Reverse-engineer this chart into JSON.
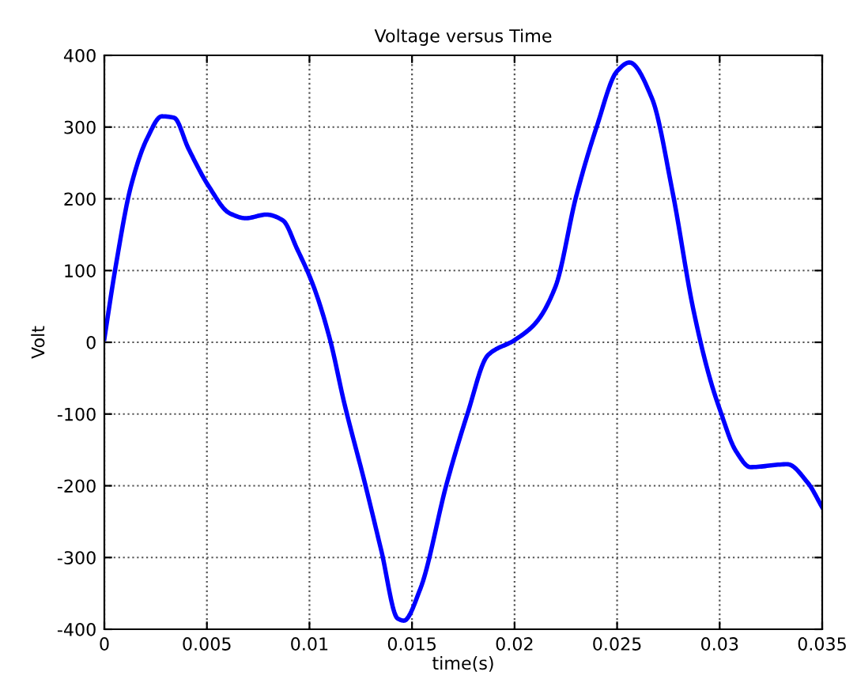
{
  "chart_data": {
    "type": "line",
    "title": "Voltage versus Time",
    "xlabel": "time(s)",
    "ylabel": "Volt",
    "x": [
      0,
      0.00056,
      0.0013,
      0.0021,
      0.0028,
      0.0034,
      0.0041,
      0.0051,
      0.0061,
      0.0069,
      0.0079,
      0.0087,
      0.0094,
      0.0102,
      0.011,
      0.0117,
      0.0127,
      0.0135,
      0.0143,
      0.0146,
      0.0154,
      0.0167,
      0.0177,
      0.0187,
      0.02,
      0.021,
      0.022,
      0.023,
      0.024,
      0.025,
      0.0256,
      0.0267,
      0.0277,
      0.0287,
      0.0295,
      0.03,
      0.0308,
      0.0315,
      0.0333,
      0.0343,
      0.035
    ],
    "series": [
      {
        "color": "#0000ff",
        "values": [
          5,
          107,
          218,
          285,
          315,
          313,
          270,
          217,
          180,
          173,
          178,
          170,
          130,
          78,
          4,
          -85,
          -196,
          -290,
          -385,
          -388,
          -344,
          -196,
          -100,
          -18,
          3,
          26,
          78,
          203,
          300,
          378,
          390,
          340,
          210,
          48,
          -48,
          -93,
          -152,
          -174,
          -170,
          -196,
          -230
        ]
      }
    ],
    "xlim": [
      0,
      0.035
    ],
    "xticks": [
      0,
      0.005,
      0.01,
      0.015,
      0.02,
      0.025,
      0.03,
      0.035
    ],
    "ylim": [
      -400,
      400
    ],
    "yticks": [
      -400,
      -300,
      -200,
      -100,
      0,
      100,
      200,
      300,
      400
    ],
    "grid": true,
    "legend": false,
    "marker": "none",
    "line_style": "solid"
  }
}
